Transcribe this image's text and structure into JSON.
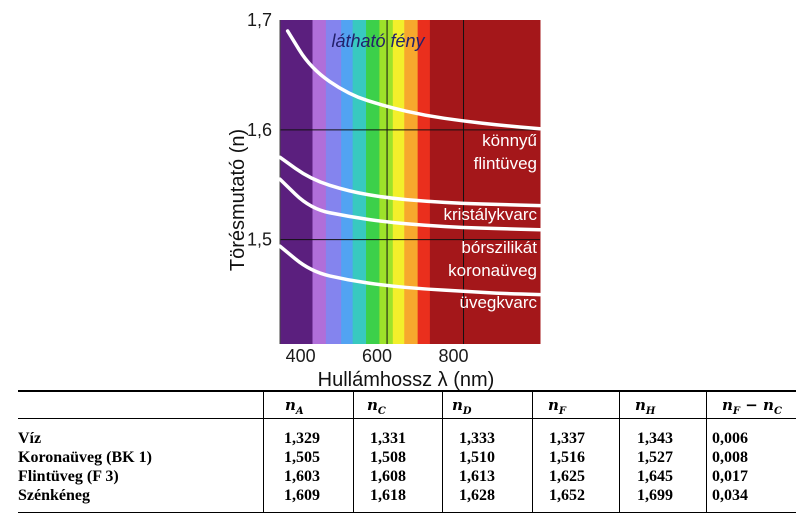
{
  "chart_data": {
    "type": "line",
    "xlabel": "Hullámhossz λ (nm)",
    "ylabel": "Törésmutató (n)",
    "x_ticks": [
      "400",
      "600",
      "800"
    ],
    "y_ticks": [
      "1,5",
      "1,6",
      "1,7"
    ],
    "xlim": [
      320,
      1000
    ],
    "ylim": [
      1.405,
      1.7
    ],
    "grid": true,
    "annotation": "látható fény",
    "series": [
      {
        "name": "könnyű flintüveg",
        "x": [
          340,
          400,
          500,
          600,
          700,
          800,
          900,
          1000
        ],
        "y": [
          1.69,
          1.656,
          1.632,
          1.621,
          1.613,
          1.608,
          1.604,
          1.601
        ]
      },
      {
        "name": "kristálykvarc",
        "x": [
          320,
          400,
          500,
          600,
          700,
          800,
          900,
          1000
        ],
        "y": [
          1.575,
          1.555,
          1.544,
          1.538,
          1.535,
          1.533,
          1.532,
          1.531
        ]
      },
      {
        "name": "bórszilikát koronaüveg",
        "x": [
          320,
          400,
          500,
          600,
          700,
          800,
          900,
          1000
        ],
        "y": [
          1.555,
          1.528,
          1.521,
          1.516,
          1.513,
          1.511,
          1.51,
          1.509
        ]
      },
      {
        "name": "üvegkvarc",
        "x": [
          320,
          400,
          500,
          600,
          700,
          800,
          900,
          1000
        ],
        "y": [
          1.494,
          1.471,
          1.463,
          1.458,
          1.455,
          1.453,
          1.451,
          1.45
        ]
      }
    ],
    "label_lines": [
      [
        "könnyű",
        "flintüveg"
      ],
      [
        "kristálykvarc"
      ],
      [
        "bórszilikát",
        "koronaüveg"
      ],
      [
        "üvegkvarc"
      ]
    ],
    "spectrum_colors": [
      "#5b1f7e",
      "#b06ed9",
      "#8484ee",
      "#52a3f2",
      "#38c9c0",
      "#3cd04a",
      "#9de22a",
      "#f3ef2b",
      "#f7a82d",
      "#ea2f1d",
      "#a4171a"
    ]
  },
  "table": {
    "headers": [
      {
        "sym": "n",
        "sub": "A"
      },
      {
        "sym": "n",
        "sub": "C"
      },
      {
        "sym": "n",
        "sub": "D"
      },
      {
        "sym": "n",
        "sub": "F"
      },
      {
        "sym": "n",
        "sub": "H"
      },
      {
        "sym": "n",
        "sub": "F",
        "suffix": " − n",
        "sub2": "C"
      }
    ],
    "rows": [
      {
        "name": "Víz",
        "values": [
          "1,329",
          "1,331",
          "1,333",
          "1,337",
          "1,343",
          "0,006"
        ]
      },
      {
        "name": "Koronaüveg (BK 1)",
        "values": [
          "1,505",
          "1,508",
          "1,510",
          "1,516",
          "1,527",
          "0,008"
        ]
      },
      {
        "name": "Flintüveg (F 3)",
        "values": [
          "1,603",
          "1,608",
          "1,613",
          "1,625",
          "1,645",
          "0,017"
        ]
      },
      {
        "name": "Szénkéneg",
        "values": [
          "1,609",
          "1,618",
          "1,628",
          "1,652",
          "1,699",
          "0,034"
        ]
      }
    ]
  }
}
